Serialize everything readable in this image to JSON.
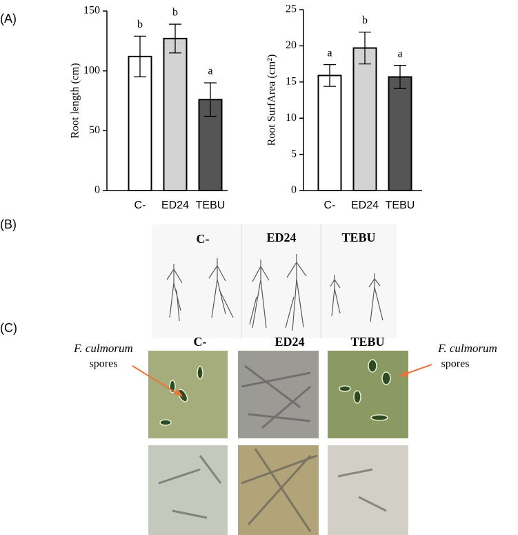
{
  "panel_labels": [
    "(A)",
    "(B)",
    "(C)"
  ],
  "chart_data": [
    {
      "type": "bar",
      "ylabel": "Root length (cm)",
      "categories": [
        "C-",
        "ED24",
        "TEBU"
      ],
      "values": [
        112,
        127,
        76
      ],
      "errors": [
        17,
        12,
        14
      ],
      "annotations": [
        "b",
        "b",
        "a"
      ],
      "colors": [
        "#ffffff",
        "#d3d3d3",
        "#555555"
      ],
      "ylim": [
        0,
        150
      ],
      "yticks": [
        0,
        50,
        100,
        150
      ]
    },
    {
      "type": "bar",
      "ylabel": "Root SurfArea (cm²)",
      "categories": [
        "C-",
        "ED24",
        "TEBU"
      ],
      "values": [
        15.9,
        19.7,
        15.7
      ],
      "errors": [
        1.5,
        2.2,
        1.6
      ],
      "annotations": [
        "a",
        "b",
        "a"
      ],
      "colors": [
        "#ffffff",
        "#d3d3d3",
        "#555555"
      ],
      "ylim": [
        0,
        25
      ],
      "yticks": [
        0,
        5,
        10,
        15,
        20,
        25
      ]
    }
  ],
  "panel_b": {
    "labels": [
      "C-",
      "ED24",
      "TEBU"
    ]
  },
  "panel_c": {
    "labels": [
      "C-",
      "ED24",
      "TEBU"
    ],
    "callouts": [
      {
        "species": "F. culmorum",
        "text": "spores"
      },
      {
        "species": "F. culmorum",
        "text": "spores"
      }
    ]
  }
}
